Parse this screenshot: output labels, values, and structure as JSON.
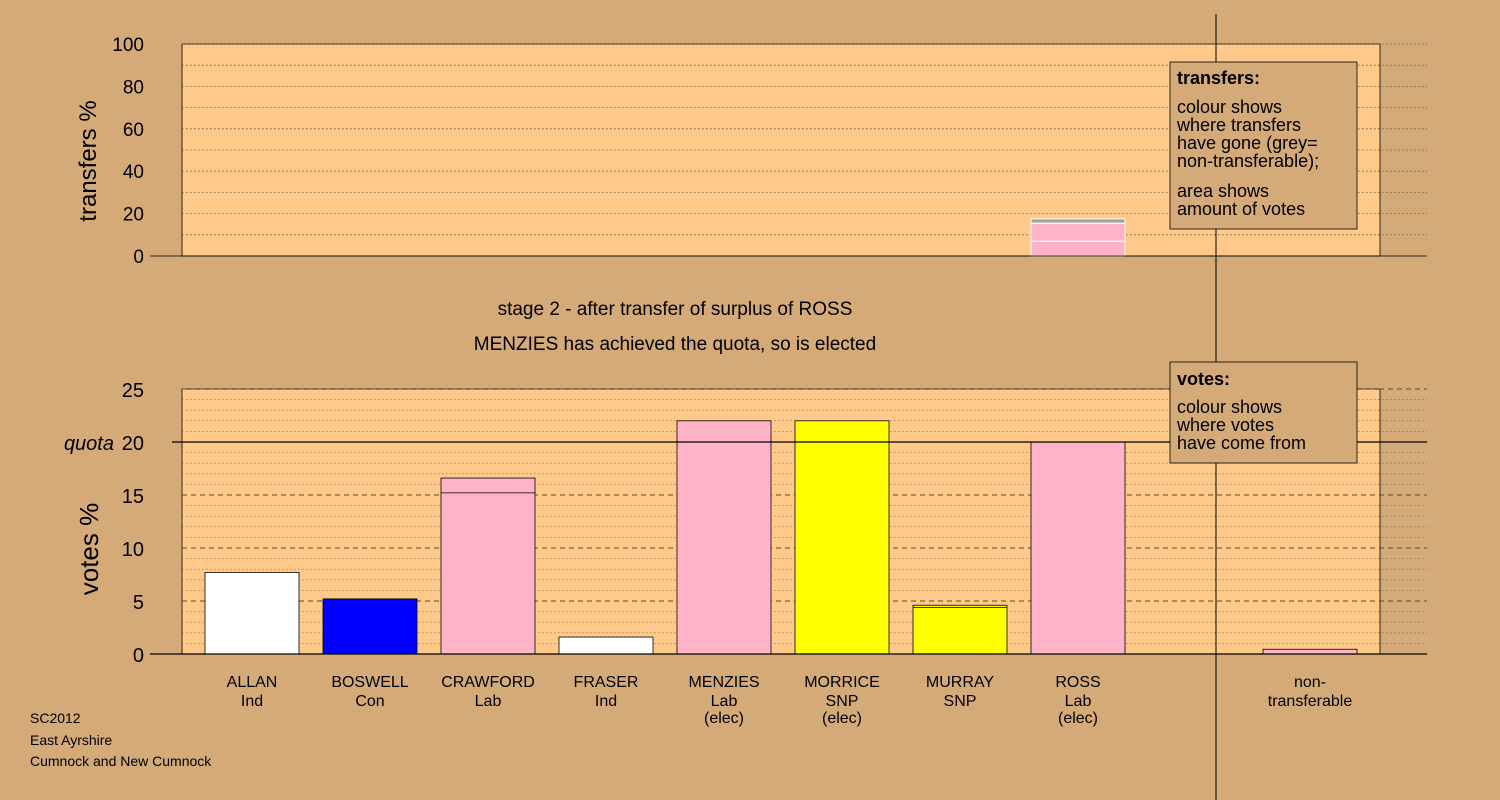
{
  "chart_data": [
    {
      "type": "bar",
      "ylabel": "transfers %",
      "ylim": [
        0,
        100
      ],
      "yticks": [
        0,
        20,
        40,
        60,
        80,
        100
      ],
      "categories": [
        "ALLAN",
        "BOSWELL",
        "CRAWFORD",
        "FRASER",
        "MENZIES",
        "MORRICE",
        "MURRAY",
        "ROSS"
      ],
      "bars": [
        {
          "category": "ROSS",
          "segments": [
            {
              "from": 0,
              "to": 7,
              "color": "#ffb3c6"
            },
            {
              "from": 7,
              "to": 15.5,
              "color": "#ffb3c6"
            },
            {
              "from": 15.5,
              "to": 17.5,
              "color": "#a0a0a0"
            }
          ]
        }
      ],
      "legend": {
        "title": "transfers:",
        "lines1": [
          "colour shows",
          "where transfers",
          "have gone (grey=",
          "non-transferable);"
        ],
        "lines2": [
          "area shows",
          "amount of votes"
        ]
      }
    },
    {
      "type": "bar",
      "ylabel": "votes %",
      "ylim": [
        0,
        25
      ],
      "yticks": [
        0,
        5,
        10,
        15,
        20,
        25
      ],
      "quota": 20,
      "quota_label": "quota",
      "candidates": [
        {
          "name": "ALLAN",
          "party": "Ind",
          "elec": "",
          "color": "#ffffff",
          "total": 7.7,
          "base": 7.7
        },
        {
          "name": "BOSWELL",
          "party": "Con",
          "elec": "",
          "color": "#0000ff",
          "total": 5.2,
          "base": 5.2
        },
        {
          "name": "CRAWFORD",
          "party": "Lab",
          "elec": "",
          "color": "#ffb3c6",
          "total": 16.6,
          "base": 15.2
        },
        {
          "name": "FRASER",
          "party": "Ind",
          "elec": "",
          "color": "#ffffff",
          "total": 1.6,
          "base": 1.6
        },
        {
          "name": "MENZIES",
          "party": "Lab",
          "elec": "(elec)",
          "color": "#ffb3c6",
          "total": 22.0,
          "base": 20.0
        },
        {
          "name": "MORRICE",
          "party": "SNP",
          "elec": "(elec)",
          "color": "#ffff00",
          "total": 22.0,
          "base": 22.0
        },
        {
          "name": "MURRAY",
          "party": "SNP",
          "elec": "",
          "color": "#ffff00",
          "total": 4.6,
          "base": 4.4
        },
        {
          "name": "ROSS",
          "party": "Lab",
          "elec": "(elec)",
          "color": "#ffb3c6",
          "total": 20.0,
          "base": 20.0
        }
      ],
      "nontransferable": {
        "label1": "non-",
        "label2": "transferable",
        "value": 0.45,
        "color": "#ffb3c6"
      },
      "legend": {
        "title": "votes:",
        "lines": [
          "colour shows",
          "where votes",
          "have come from"
        ]
      }
    }
  ],
  "stage_text": {
    "line1": "stage 2 - after transfer of surplus of ROSS",
    "line2": "MENZIES has achieved the quota, so is elected"
  },
  "footer": {
    "line1": "SC2012",
    "line2": "East Ayrshire",
    "line3": "Cumnock and New Cumnock"
  }
}
